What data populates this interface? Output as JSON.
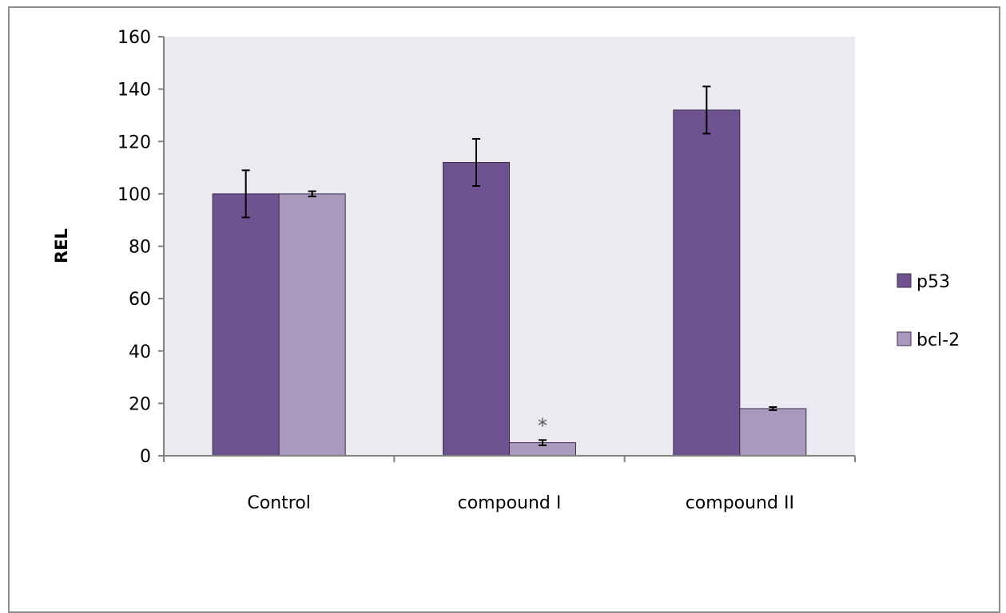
{
  "chart_data": {
    "type": "bar",
    "title": "",
    "xlabel": "",
    "ylabel": "REL",
    "ylim": [
      0,
      160
    ],
    "yticks": [
      0,
      20,
      40,
      60,
      80,
      100,
      120,
      140,
      160
    ],
    "categories": [
      "Control",
      "compound I",
      "compound II"
    ],
    "series": [
      {
        "name": "p53",
        "values": [
          100,
          112,
          132
        ],
        "errors": [
          9,
          9,
          9
        ],
        "color": "#6f5290"
      },
      {
        "name": "bcl-2",
        "values": [
          100,
          5,
          18
        ],
        "errors": [
          1,
          1,
          0.6
        ],
        "color": "#a899bd"
      }
    ],
    "annotations": [
      {
        "text": "*",
        "category": "compound I",
        "series": "bcl-2"
      }
    ],
    "plot_background": "#ece9f0",
    "grid": false,
    "legend": "right"
  }
}
